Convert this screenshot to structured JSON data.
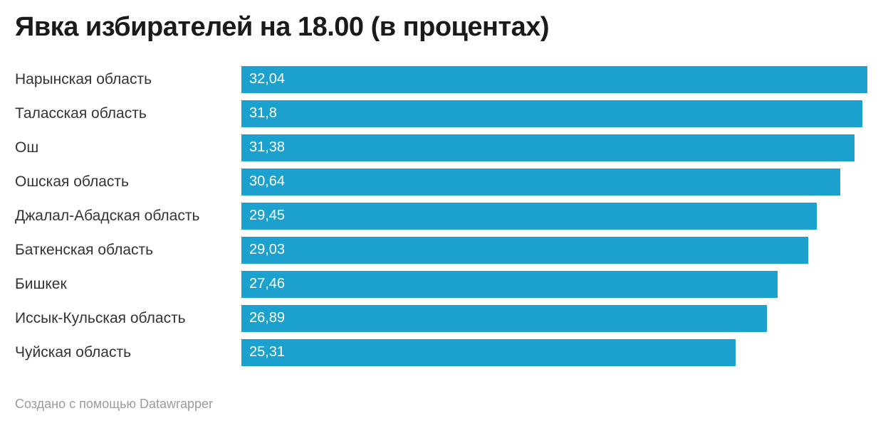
{
  "header": {
    "title": "Явка избирателей на 18.00 (в процентах)"
  },
  "chart_data": {
    "type": "bar",
    "orientation": "horizontal",
    "title": "Явка избирателей на 18.00 (в процентах)",
    "categories": [
      "Нарынская область",
      "Таласская область",
      "Ош",
      "Ошская область",
      "Джалал-Абадская область",
      "Баткенская область",
      "Бишкек",
      "Иссык-Кульская область",
      "Чуйская область"
    ],
    "values": [
      32.04,
      31.8,
      31.38,
      30.64,
      29.45,
      29.03,
      27.46,
      26.89,
      25.31
    ],
    "value_labels": [
      "32,04",
      "31,8",
      "31,38",
      "30,64",
      "29,45",
      "29,03",
      "27,46",
      "26,89",
      "25,31"
    ],
    "xlabel": "",
    "ylabel": "",
    "xlim": [
      0,
      32.04
    ],
    "grid": false,
    "legend": false,
    "value_label_position": "inside-left",
    "decimal_separator": ","
  },
  "footer": {
    "text": "Создано с помощью Datawrapper"
  },
  "colors": {
    "bar": "#1CA0CE",
    "title": "#1A1A1A",
    "label": "#333333",
    "value_label": "#FFFFFF",
    "footer_text": "#9B9B9B",
    "background": "#FFFFFF"
  }
}
